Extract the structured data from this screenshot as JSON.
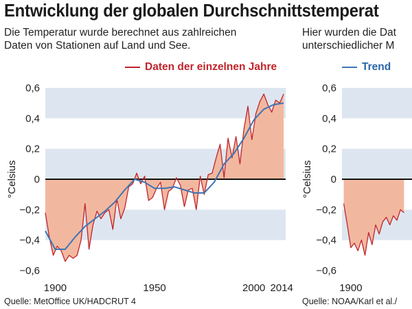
{
  "title": "Entwicklung der globalen Durchschnittstemperat",
  "subtitle_left": [
    "Die Temperatur wurde berechnet aus zahlreichen",
    "Daten von Stationen auf Land und See."
  ],
  "subtitle_right": [
    "Hier wurden die Dat",
    "unterschiedlicher M"
  ],
  "source_left": "Quelle: MetOffice UK/HADCRUT 4",
  "source_right": "Quelle: NOAA/Karl et al./",
  "colors": {
    "annual_line": "#c0242c",
    "trend_line": "#3f73b3",
    "fill": "#f2b89f",
    "band": "#dde6f0",
    "zero_line": "#111111"
  },
  "chart_data": [
    {
      "type": "line",
      "legend": [
        "Daten der einzelnen Jahre",
        "Trend"
      ],
      "legend_placement": "top",
      "ylabel": "°Celsius",
      "ylim": [
        -0.6,
        0.6
      ],
      "yticks": [
        0.6,
        0.4,
        0.2,
        0,
        -0.2,
        -0.4,
        -0.6
      ],
      "ytick_labels": [
        "0,6",
        "0,4",
        "0,2",
        "0",
        "−0,2",
        "−0,4",
        "−0,6"
      ],
      "xlim": [
        1895,
        2016
      ],
      "xticks": [
        1900,
        1950,
        2000,
        2014
      ],
      "horizontal_bands": [
        [
          0.4,
          0.6
        ],
        [
          0,
          0.2
        ],
        [
          -0.4,
          -0.2
        ]
      ],
      "fill_to_zero": true,
      "series": [
        {
          "name": "Daten der einzelnen Jahre",
          "x": [
            1895,
            1897,
            1899,
            1901,
            1903,
            1905,
            1907,
            1909,
            1911,
            1913,
            1915,
            1917,
            1919,
            1921,
            1923,
            1925,
            1927,
            1929,
            1931,
            1933,
            1935,
            1937,
            1939,
            1941,
            1943,
            1945,
            1947,
            1949,
            1951,
            1953,
            1955,
            1957,
            1959,
            1961,
            1963,
            1965,
            1967,
            1969,
            1971,
            1973,
            1975,
            1977,
            1979,
            1981,
            1983,
            1985,
            1987,
            1989,
            1991,
            1993,
            1995,
            1997,
            1999,
            2001,
            2003,
            2005,
            2007,
            2009,
            2011,
            2013,
            2015
          ],
          "values": [
            -0.22,
            -0.38,
            -0.5,
            -0.44,
            -0.47,
            -0.54,
            -0.5,
            -0.52,
            -0.5,
            -0.4,
            -0.16,
            -0.46,
            -0.3,
            -0.21,
            -0.26,
            -0.22,
            -0.2,
            -0.33,
            -0.13,
            -0.26,
            -0.19,
            -0.05,
            -0.03,
            0.04,
            -0.03,
            0.02,
            -0.14,
            -0.12,
            -0.06,
            -0.02,
            -0.2,
            -0.08,
            -0.06,
            0.01,
            -0.04,
            -0.18,
            -0.07,
            -0.06,
            -0.2,
            0.02,
            -0.1,
            0.03,
            0.04,
            0.14,
            0.23,
            0.01,
            0.27,
            0.14,
            0.28,
            0.1,
            0.33,
            0.48,
            0.26,
            0.43,
            0.51,
            0.56,
            0.49,
            0.44,
            0.52,
            0.5,
            0.56
          ]
        },
        {
          "name": "Trend",
          "x": [
            1895,
            1900,
            1905,
            1910,
            1915,
            1920,
            1925,
            1930,
            1935,
            1940,
            1945,
            1950,
            1955,
            1960,
            1965,
            1970,
            1975,
            1980,
            1985,
            1990,
            1995,
            2000,
            2005,
            2010,
            2015
          ],
          "values": [
            -0.34,
            -0.46,
            -0.46,
            -0.38,
            -0.31,
            -0.26,
            -0.21,
            -0.15,
            -0.07,
            0.0,
            -0.02,
            -0.06,
            -0.06,
            -0.05,
            -0.07,
            -0.09,
            -0.09,
            -0.02,
            0.1,
            0.17,
            0.27,
            0.39,
            0.46,
            0.49,
            0.5
          ]
        }
      ]
    },
    {
      "type": "line",
      "ylabel": "°Celsius",
      "ylim": [
        -0.6,
        0.6
      ],
      "yticks": [
        0.6,
        0.4,
        0.2,
        0,
        -0.2,
        -0.4,
        -0.6
      ],
      "ytick_labels": [
        "0,6",
        "0,4",
        "0,2",
        "0",
        "−0,2",
        "−0,4",
        "−0,6"
      ],
      "xlim": [
        1895,
        1950
      ],
      "xticks": [
        1900
      ],
      "horizontal_bands": [
        [
          0.4,
          0.6
        ],
        [
          0,
          0.2
        ],
        [
          -0.4,
          -0.2
        ]
      ],
      "fill_to_zero": true,
      "series": [
        {
          "x": [
            1896,
            1898,
            1900,
            1902,
            1904,
            1906,
            1908,
            1910,
            1912,
            1914,
            1916,
            1918,
            1920,
            1922,
            1924,
            1926,
            1928,
            1930
          ],
          "values": [
            -0.16,
            -0.3,
            -0.45,
            -0.42,
            -0.47,
            -0.4,
            -0.5,
            -0.35,
            -0.43,
            -0.3,
            -0.36,
            -0.28,
            -0.25,
            -0.3,
            -0.24,
            -0.27,
            -0.2,
            -0.22
          ]
        }
      ]
    }
  ]
}
